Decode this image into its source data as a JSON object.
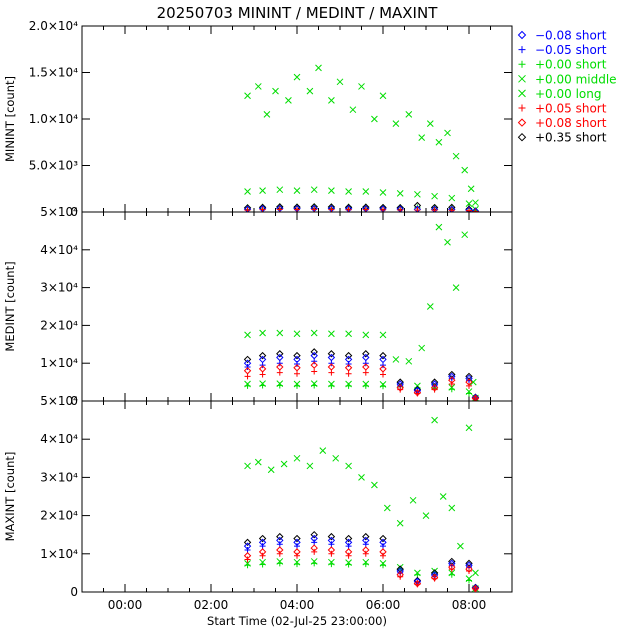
{
  "title": "20250703 MININT / MEDINT / MAXINT",
  "xlabel": "Start Time (02-Jul-25 23:00:00)",
  "legend": [
    {
      "label": "−0.08 short",
      "marker": "diamond",
      "color": "#0000ff"
    },
    {
      "label": "−0.05 short",
      "marker": "plus",
      "color": "#0000ff"
    },
    {
      "label": "+0.00 short",
      "marker": "plus",
      "color": "#00dd00"
    },
    {
      "label": "+0.00 middle",
      "marker": "cross",
      "color": "#00dd00"
    },
    {
      "label": "+0.00 long",
      "marker": "cross",
      "color": "#00dd00"
    },
    {
      "label": "+0.05 short",
      "marker": "plus",
      "color": "#ff0000"
    },
    {
      "label": "+0.08 short",
      "marker": "diamond",
      "color": "#ff0000"
    },
    {
      "label": "+0.35 short",
      "marker": "diamond",
      "color": "#000000"
    }
  ],
  "chart_data": [
    {
      "type": "scatter",
      "ylabel": "MININT [count]",
      "x_unit": "hours",
      "xlim": [
        -1.0,
        9.0
      ],
      "ylim": [
        0,
        20000
      ],
      "x_ticks": [
        0,
        2,
        4,
        6,
        8
      ],
      "x_tick_labels": [
        "00:00",
        "02:00",
        "04:00",
        "06:00",
        "08:00"
      ],
      "y_ticks": [
        0,
        5000,
        10000,
        15000,
        20000
      ],
      "y_tick_labels": [
        "0",
        "5.0×10³",
        "1.0×10⁴",
        "1.5×10⁴",
        "2.0×10⁴"
      ],
      "series": [
        {
          "legend_index": 4,
          "x": [
            2.85,
            3.1,
            3.3,
            3.5,
            3.8,
            4.0,
            4.3,
            4.5,
            4.8,
            5.0,
            5.3,
            5.5,
            5.8,
            6.0,
            6.3,
            6.6,
            6.9,
            7.1,
            7.3,
            7.5,
            7.7,
            7.9,
            8.05,
            8.15
          ],
          "y": [
            12500,
            13500,
            10500,
            13000,
            12000,
            14500,
            13000,
            15500,
            12000,
            14000,
            11000,
            13500,
            10000,
            12500,
            9500,
            10500,
            8000,
            9500,
            7500,
            8500,
            6000,
            4500,
            2500,
            1000
          ]
        },
        {
          "legend_index": 3,
          "x": [
            2.85,
            3.2,
            3.6,
            4.0,
            4.4,
            4.8,
            5.2,
            5.6,
            6.0,
            6.4,
            6.8,
            7.2,
            7.6,
            8.0,
            8.15
          ],
          "y": [
            2200,
            2300,
            2400,
            2300,
            2400,
            2300,
            2200,
            2200,
            2100,
            2000,
            1900,
            1700,
            1500,
            900,
            300
          ]
        },
        {
          "legend_index": 2,
          "x": [
            2.85,
            3.2,
            3.6,
            4.0,
            4.4,
            4.8,
            5.2,
            5.6,
            6.0,
            6.4,
            6.8,
            7.2,
            7.6,
            8.0,
            8.15
          ],
          "y": [
            500,
            550,
            600,
            580,
            600,
            580,
            560,
            560,
            540,
            520,
            500,
            480,
            450,
            350,
            100
          ]
        },
        {
          "legend_index": 7,
          "x": [
            2.85,
            3.2,
            3.6,
            4.0,
            4.4,
            4.8,
            5.2,
            5.6,
            6.0,
            6.4,
            6.8,
            7.2,
            7.6,
            8.0,
            8.15
          ],
          "y": [
            450,
            500,
            550,
            520,
            560,
            540,
            500,
            520,
            480,
            460,
            700,
            480,
            500,
            300,
            100
          ]
        },
        {
          "legend_index": 0,
          "x": [
            2.85,
            3.2,
            3.6,
            4.0,
            4.4,
            4.8,
            5.2,
            5.6,
            6.0,
            6.4,
            6.8,
            7.2,
            7.6,
            8.0,
            8.15
          ],
          "y": [
            300,
            350,
            380,
            360,
            380,
            360,
            340,
            350,
            330,
            320,
            300,
            290,
            280,
            200,
            80
          ]
        },
        {
          "legend_index": 5,
          "x": [
            2.85,
            3.2,
            3.6,
            4.0,
            4.4,
            4.8,
            5.2,
            5.6,
            6.0,
            6.4,
            6.8,
            7.2,
            7.6,
            8.0,
            8.15
          ],
          "y": [
            200,
            250,
            280,
            260,
            280,
            260,
            240,
            250,
            230,
            220,
            210,
            200,
            190,
            150,
            60
          ]
        }
      ]
    },
    {
      "type": "scatter",
      "ylabel": "MEDINT [count]",
      "x_unit": "hours",
      "xlim": [
        -1.0,
        9.0
      ],
      "ylim": [
        0,
        50000
      ],
      "x_ticks": [
        0,
        2,
        4,
        6,
        8
      ],
      "x_tick_labels": [
        "00:00",
        "02:00",
        "04:00",
        "06:00",
        "08:00"
      ],
      "y_ticks": [
        0,
        10000,
        20000,
        30000,
        40000,
        50000
      ],
      "y_tick_labels": [
        "0",
        "1×10⁴",
        "2×10⁴",
        "3×10⁴",
        "4×10⁴",
        "5×10⁴"
      ],
      "series": [
        {
          "legend_index": 4,
          "x": [
            2.85,
            3.2,
            3.6,
            4.0,
            4.4,
            4.8,
            5.2,
            5.6,
            6.0,
            6.3,
            6.6,
            6.9,
            7.1,
            7.3,
            7.5,
            7.7,
            7.9,
            8.1
          ],
          "y": [
            17500,
            18000,
            18000,
            17800,
            18000,
            17800,
            17800,
            17500,
            17500,
            11000,
            10500,
            14000,
            25000,
            46000,
            42000,
            30000,
            44000,
            5000
          ]
        },
        {
          "legend_index": 3,
          "x": [
            2.85,
            3.2,
            3.6,
            4.0,
            4.4,
            4.8,
            5.2,
            5.6,
            6.0,
            6.4,
            6.8,
            7.2,
            7.6,
            8.0,
            8.15
          ],
          "y": [
            4500,
            4600,
            4600,
            4500,
            4600,
            4500,
            4500,
            4500,
            4400,
            4200,
            4000,
            3800,
            3600,
            2500,
            800
          ]
        },
        {
          "legend_index": 2,
          "x": [
            2.85,
            3.2,
            3.6,
            4.0,
            4.4,
            4.8,
            5.2,
            5.6,
            6.0,
            6.4,
            6.8,
            7.2,
            7.6,
            8.0,
            8.15
          ],
          "y": [
            4000,
            4100,
            4100,
            4000,
            4100,
            4000,
            4000,
            4000,
            3900,
            3800,
            3500,
            3300,
            3100,
            2000,
            600
          ]
        },
        {
          "legend_index": 7,
          "x": [
            2.85,
            3.2,
            3.6,
            4.0,
            4.4,
            4.8,
            5.2,
            5.6,
            6.0,
            6.4,
            6.8,
            7.2,
            7.6,
            8.0,
            8.15
          ],
          "y": [
            11000,
            12000,
            12500,
            12000,
            13000,
            12500,
            12000,
            12500,
            12000,
            5000,
            3000,
            5000,
            7000,
            6500,
            1000
          ]
        },
        {
          "legend_index": 0,
          "x": [
            2.85,
            3.2,
            3.6,
            4.0,
            4.4,
            4.8,
            5.2,
            5.6,
            6.0,
            6.4,
            6.8,
            7.2,
            7.6,
            8.0,
            8.15
          ],
          "y": [
            10000,
            11000,
            11500,
            11000,
            12000,
            11500,
            11000,
            11500,
            11000,
            4500,
            2800,
            4500,
            6500,
            6000,
            900
          ]
        },
        {
          "legend_index": 1,
          "x": [
            2.85,
            3.2,
            3.6,
            4.0,
            4.4,
            4.8,
            5.2,
            5.6,
            6.0,
            6.4,
            6.8,
            7.2,
            7.6,
            8.0,
            8.15
          ],
          "y": [
            9000,
            9500,
            10000,
            9800,
            10500,
            10000,
            9800,
            10000,
            9500,
            4000,
            2500,
            4000,
            6000,
            5500,
            800
          ]
        },
        {
          "legend_index": 6,
          "x": [
            2.85,
            3.2,
            3.6,
            4.0,
            4.4,
            4.8,
            5.2,
            5.6,
            6.0,
            6.4,
            6.8,
            7.2,
            7.6,
            8.0,
            8.15
          ],
          "y": [
            8000,
            8500,
            9000,
            8800,
            9500,
            9000,
            8800,
            9000,
            8500,
            3500,
            2200,
            3500,
            5500,
            5000,
            700
          ]
        },
        {
          "legend_index": 5,
          "x": [
            2.85,
            3.2,
            3.6,
            4.0,
            4.4,
            4.8,
            5.2,
            5.6,
            6.0,
            6.4,
            6.8,
            7.2,
            7.6,
            8.0,
            8.15
          ],
          "y": [
            6500,
            7000,
            7500,
            7200,
            7800,
            7500,
            7200,
            7500,
            7000,
            3000,
            2000,
            3000,
            4500,
            4000,
            600
          ]
        }
      ]
    },
    {
      "type": "scatter",
      "ylabel": "MAXINT [count]",
      "x_unit": "hours",
      "xlim": [
        -1.0,
        9.0
      ],
      "ylim": [
        0,
        50000
      ],
      "x_ticks": [
        0,
        2,
        4,
        6,
        8
      ],
      "x_tick_labels": [
        "00:00",
        "02:00",
        "04:00",
        "06:00",
        "08:00"
      ],
      "y_ticks": [
        0,
        10000,
        20000,
        30000,
        40000,
        50000
      ],
      "y_tick_labels": [
        "0",
        "1×10⁴",
        "2×10⁴",
        "3×10⁴",
        "4×10⁴",
        "5×10⁴"
      ],
      "series": [
        {
          "legend_index": 4,
          "x": [
            2.85,
            3.1,
            3.4,
            3.7,
            4.0,
            4.3,
            4.6,
            4.9,
            5.2,
            5.5,
            5.8,
            6.1,
            6.4,
            6.7,
            7.0,
            7.2,
            7.4,
            7.6,
            7.8,
            8.0,
            8.15
          ],
          "y": [
            33000,
            34000,
            32000,
            33500,
            35000,
            33000,
            37000,
            35000,
            33000,
            30000,
            28000,
            22000,
            18000,
            24000,
            20000,
            45000,
            25000,
            22000,
            12000,
            43000,
            5000
          ]
        },
        {
          "legend_index": 3,
          "x": [
            2.85,
            3.2,
            3.6,
            4.0,
            4.4,
            4.8,
            5.2,
            5.6,
            6.0,
            6.4,
            6.8,
            7.2,
            7.6,
            8.0,
            8.15
          ],
          "y": [
            7500,
            7800,
            8000,
            7800,
            8000,
            7800,
            7700,
            7800,
            7500,
            6500,
            5000,
            5500,
            5000,
            3500,
            900
          ]
        },
        {
          "legend_index": 2,
          "x": [
            2.85,
            3.2,
            3.6,
            4.0,
            4.4,
            4.8,
            5.2,
            5.6,
            6.0,
            6.4,
            6.8,
            7.2,
            7.6,
            8.0,
            8.15
          ],
          "y": [
            7000,
            7200,
            7500,
            7300,
            7500,
            7300,
            7200,
            7300,
            7000,
            6000,
            4500,
            5000,
            4500,
            3000,
            800
          ]
        },
        {
          "legend_index": 7,
          "x": [
            2.85,
            3.2,
            3.6,
            4.0,
            4.4,
            4.8,
            5.2,
            5.6,
            6.0,
            6.4,
            6.8,
            7.2,
            7.6,
            8.0,
            8.15
          ],
          "y": [
            13000,
            14000,
            14500,
            14000,
            15000,
            14500,
            14000,
            14500,
            14000,
            6000,
            3000,
            5000,
            8000,
            7500,
            1200
          ]
        },
        {
          "legend_index": 0,
          "x": [
            2.85,
            3.2,
            3.6,
            4.0,
            4.4,
            4.8,
            5.2,
            5.6,
            6.0,
            6.4,
            6.8,
            7.2,
            7.6,
            8.0,
            8.15
          ],
          "y": [
            12000,
            13000,
            13500,
            13000,
            14000,
            13500,
            13000,
            13500,
            13000,
            5500,
            2800,
            4500,
            7500,
            7000,
            1100
          ]
        },
        {
          "legend_index": 1,
          "x": [
            2.85,
            3.2,
            3.6,
            4.0,
            4.4,
            4.8,
            5.2,
            5.6,
            6.0,
            6.4,
            6.8,
            7.2,
            7.6,
            8.0,
            8.15
          ],
          "y": [
            11000,
            12000,
            12500,
            12000,
            13000,
            12500,
            12000,
            12500,
            12000,
            5000,
            2500,
            4200,
            7000,
            6500,
            1000
          ]
        },
        {
          "legend_index": 6,
          "x": [
            2.85,
            3.2,
            3.6,
            4.0,
            4.4,
            4.8,
            5.2,
            5.6,
            6.0,
            6.4,
            6.8,
            7.2,
            7.6,
            8.0,
            8.15
          ],
          "y": [
            9500,
            10500,
            11000,
            10500,
            11500,
            11000,
            10500,
            11000,
            10500,
            4500,
            2200,
            3800,
            6500,
            6000,
            900
          ]
        },
        {
          "legend_index": 5,
          "x": [
            2.85,
            3.2,
            3.6,
            4.0,
            4.4,
            4.8,
            5.2,
            5.6,
            6.0,
            6.4,
            6.8,
            7.2,
            7.6,
            8.0,
            8.15
          ],
          "y": [
            8500,
            9500,
            10000,
            9500,
            10500,
            10000,
            9500,
            10000,
            9500,
            4000,
            2000,
            3500,
            6000,
            5500,
            800
          ]
        }
      ]
    }
  ]
}
